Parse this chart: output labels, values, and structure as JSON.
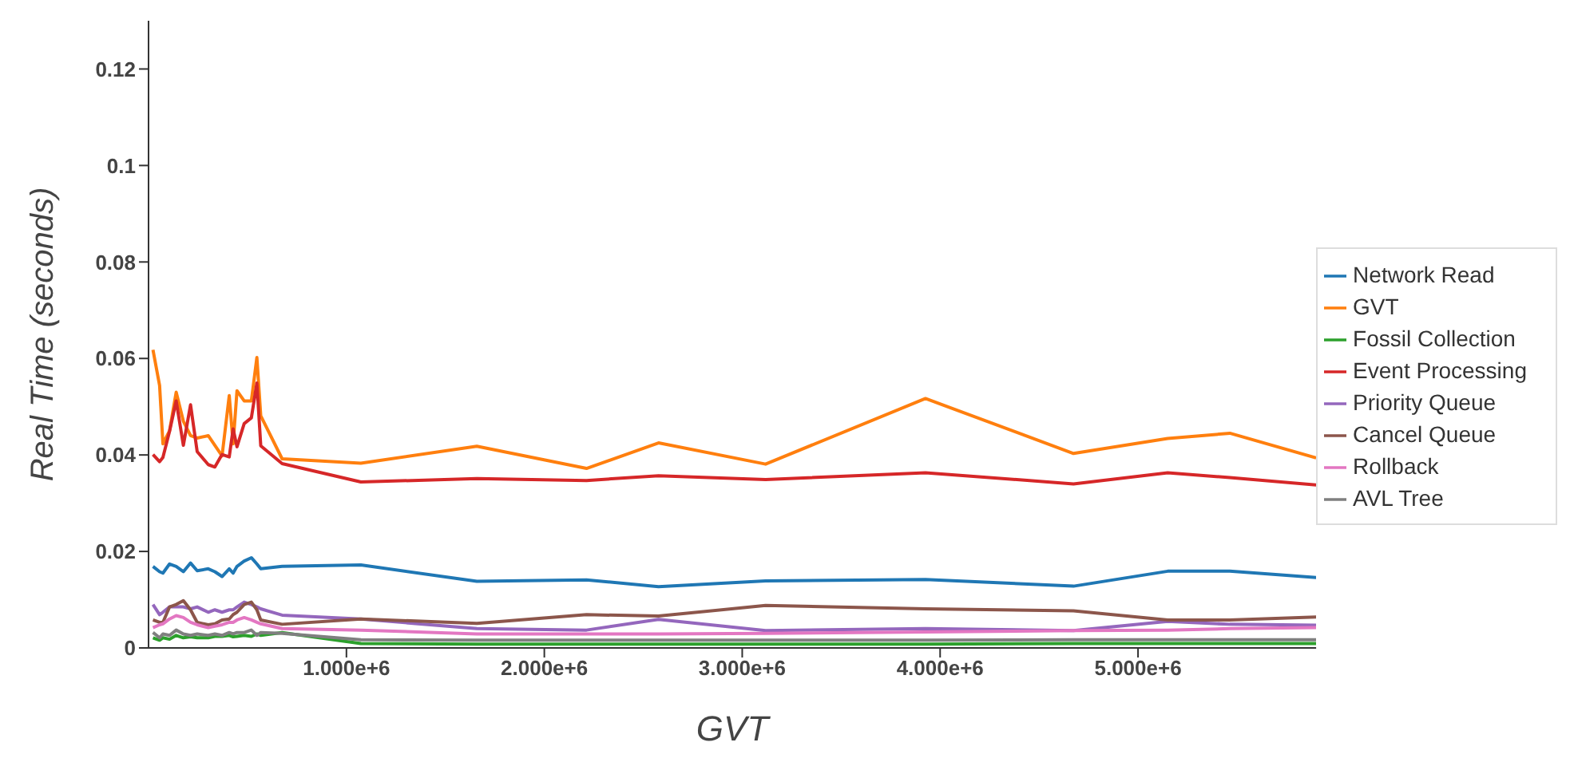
{
  "chart_data": {
    "type": "line",
    "xlabel": "GVT",
    "ylabel": "Real Time (seconds)",
    "x": [
      22400,
      55900,
      72700,
      106200,
      139700,
      176000,
      212300,
      245800,
      301700,
      335200,
      371500,
      407900,
      427400,
      447000,
      483300,
      519600,
      547500,
      567100,
      675000,
      1073000,
      1659000,
      2213000,
      2577000,
      3118000,
      3926000,
      4674000,
      5150000,
      5464000,
      5900000
    ],
    "series": [
      {
        "name": "Network Read",
        "color": "#1f77b4",
        "values": [
          0.0169,
          0.0158,
          0.0155,
          0.0174,
          0.0169,
          0.0158,
          0.0176,
          0.016,
          0.0164,
          0.0158,
          0.0148,
          0.0164,
          0.0155,
          0.0169,
          0.018,
          0.0187,
          0.0174,
          0.0164,
          0.0169,
          0.0172,
          0.0138,
          0.0141,
          0.0127,
          0.0139,
          0.0142,
          0.0128,
          0.0159,
          0.0159,
          0.0146
        ]
      },
      {
        "name": "GVT",
        "color": "#ff7f0e",
        "values": [
          0.0618,
          0.0544,
          0.0423,
          0.045,
          0.053,
          0.047,
          0.044,
          0.0435,
          0.044,
          0.042,
          0.0398,
          0.0523,
          0.0423,
          0.0533,
          0.0512,
          0.0512,
          0.0602,
          0.0481,
          0.0392,
          0.0383,
          0.0418,
          0.0372,
          0.0425,
          0.0381,
          0.0517,
          0.0403,
          0.0434,
          0.0445,
          0.0394
        ]
      },
      {
        "name": "Fossil Collection",
        "color": "#2ca02c",
        "values": [
          0.0021,
          0.0016,
          0.0021,
          0.0018,
          0.0026,
          0.0021,
          0.0023,
          0.0021,
          0.0021,
          0.0024,
          0.0024,
          0.0026,
          0.0023,
          0.0024,
          0.0026,
          0.0024,
          0.0029,
          0.0026,
          0.0032,
          0.0009,
          0.0008,
          0.0008,
          0.0008,
          0.0008,
          0.0008,
          0.0009,
          0.0009,
          0.0009,
          0.0009
        ]
      },
      {
        "name": "Event Processing",
        "color": "#d62728",
        "values": [
          0.0401,
          0.0386,
          0.0395,
          0.0449,
          0.0512,
          0.042,
          0.0504,
          0.0407,
          0.038,
          0.0375,
          0.0401,
          0.0396,
          0.0454,
          0.0417,
          0.0465,
          0.0477,
          0.0549,
          0.0419,
          0.0382,
          0.0344,
          0.0351,
          0.0347,
          0.0357,
          0.0349,
          0.0363,
          0.034,
          0.0363,
          0.0353,
          0.0338
        ]
      },
      {
        "name": "Priority Queue",
        "color": "#9467bd",
        "values": [
          0.009,
          0.0069,
          0.0074,
          0.0085,
          0.0085,
          0.0085,
          0.0081,
          0.0085,
          0.0074,
          0.0079,
          0.0074,
          0.0079,
          0.0079,
          0.0085,
          0.0095,
          0.009,
          0.0085,
          0.0081,
          0.0068,
          0.006,
          0.004,
          0.0037,
          0.0059,
          0.0036,
          0.004,
          0.0036,
          0.0055,
          0.0049,
          0.0047
        ]
      },
      {
        "name": "Cancel Queue",
        "color": "#8c564b",
        "values": [
          0.0058,
          0.0053,
          0.0053,
          0.0085,
          0.009,
          0.0098,
          0.0079,
          0.0053,
          0.0048,
          0.005,
          0.0058,
          0.006,
          0.0069,
          0.0074,
          0.009,
          0.0095,
          0.0079,
          0.0058,
          0.0049,
          0.006,
          0.0051,
          0.0069,
          0.0066,
          0.0088,
          0.0081,
          0.0077,
          0.0058,
          0.0058,
          0.0064
        ]
      },
      {
        "name": "Rollback",
        "color": "#e377c2",
        "values": [
          0.0042,
          0.0048,
          0.005,
          0.006,
          0.0067,
          0.0063,
          0.0053,
          0.0048,
          0.0042,
          0.0045,
          0.0048,
          0.0053,
          0.0053,
          0.0058,
          0.0063,
          0.0058,
          0.0053,
          0.005,
          0.004,
          0.0037,
          0.0029,
          0.0029,
          0.0029,
          0.003,
          0.0033,
          0.0036,
          0.0037,
          0.004,
          0.0042
        ]
      },
      {
        "name": "AVL Tree",
        "color": "#7f7f7f",
        "values": [
          0.0032,
          0.0021,
          0.0029,
          0.0026,
          0.0037,
          0.0029,
          0.0026,
          0.0029,
          0.0026,
          0.0029,
          0.0026,
          0.0032,
          0.0029,
          0.0032,
          0.0032,
          0.0037,
          0.0026,
          0.0032,
          0.003,
          0.0017,
          0.0016,
          0.0016,
          0.0016,
          0.0016,
          0.0016,
          0.0017,
          0.0017,
          0.0017,
          0.0017
        ]
      }
    ],
    "xlim": [
      0,
      5900000
    ],
    "xticks": [
      {
        "value": 1000000,
        "label": "1.000e+6"
      },
      {
        "value": 2000000,
        "label": "2.000e+6"
      },
      {
        "value": 3000000,
        "label": "3.000e+6"
      },
      {
        "value": 4000000,
        "label": "4.000e+6"
      },
      {
        "value": 5000000,
        "label": "5.000e+6"
      }
    ],
    "ylim": [
      0,
      0.13
    ],
    "yticks": [
      0,
      0.02,
      0.04,
      0.06,
      0.08,
      0.1,
      0.12
    ],
    "grid": false,
    "legend": "right",
    "marker": "none",
    "line_style": "solid"
  }
}
